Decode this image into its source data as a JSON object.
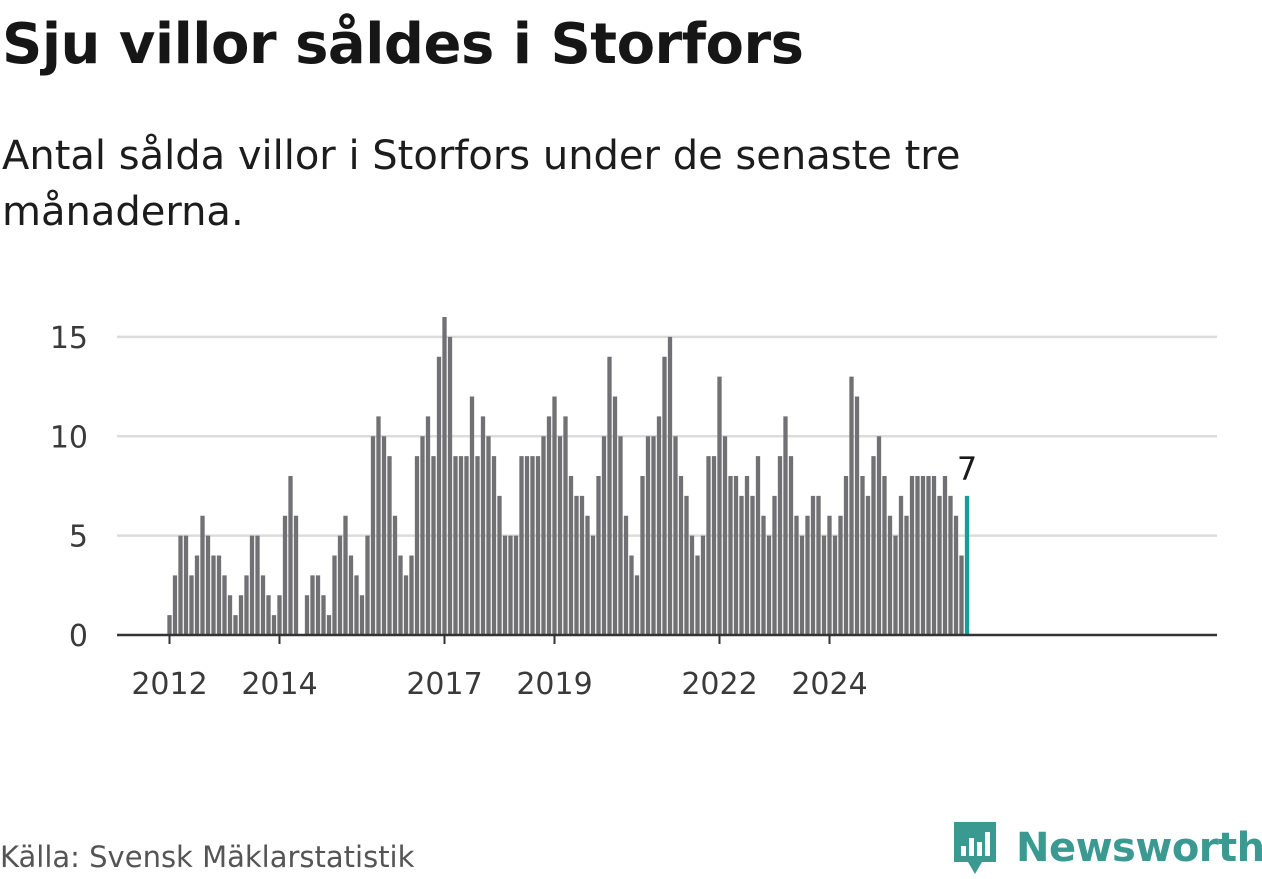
{
  "title": "Sju villor såldes i Storfors",
  "subtitle": "Antal sålda villor i Storfors under de senaste tre månaderna.",
  "source": "Källa: Svensk Mäklarstatistik",
  "brand": "Newsworthy",
  "colors": {
    "bar": "#717174",
    "highlight": "#159f96",
    "grid": "#dcdcdc",
    "axis": "#333333",
    "brand": "#3a9a92"
  },
  "chart_data": {
    "type": "bar",
    "title": "Sju villor såldes i Storfors",
    "subtitle": "Antal sålda villor i Storfors under de senaste tre månaderna.",
    "xlabel": "",
    "ylabel": "",
    "ylim": [
      0,
      16
    ],
    "y_ticks": [
      0,
      5,
      10,
      15
    ],
    "x_ticks": [
      {
        "label": "2012",
        "index": 0
      },
      {
        "label": "2014",
        "index": 20
      },
      {
        "label": "2017",
        "index": 50
      },
      {
        "label": "2019",
        "index": 70
      },
      {
        "label": "2022",
        "index": 100
      },
      {
        "label": "2024",
        "index": 120
      }
    ],
    "last_value_label": "7",
    "values": [
      1,
      3,
      5,
      5,
      3,
      4,
      6,
      5,
      4,
      4,
      3,
      2,
      1,
      2,
      3,
      5,
      5,
      3,
      2,
      1,
      2,
      6,
      8,
      6,
      0,
      2,
      3,
      3,
      2,
      1,
      4,
      5,
      6,
      4,
      3,
      2,
      5,
      10,
      11,
      10,
      9,
      6,
      4,
      3,
      4,
      9,
      10,
      11,
      9,
      14,
      16,
      15,
      9,
      9,
      9,
      12,
      9,
      11,
      10,
      9,
      7,
      5,
      5,
      5,
      9,
      9,
      9,
      9,
      10,
      11,
      12,
      10,
      11,
      8,
      7,
      7,
      6,
      5,
      8,
      10,
      14,
      12,
      10,
      6,
      4,
      3,
      8,
      10,
      10,
      11,
      14,
      15,
      10,
      8,
      7,
      5,
      4,
      5,
      9,
      9,
      13,
      10,
      8,
      8,
      7,
      8,
      7,
      9,
      6,
      5,
      7,
      9,
      11,
      9,
      6,
      5,
      6,
      7,
      7,
      5,
      6,
      5,
      6,
      8,
      13,
      12,
      8,
      7,
      9,
      10,
      8,
      6,
      5,
      7,
      6,
      8,
      8,
      8,
      8,
      8,
      7,
      8,
      7,
      6,
      4,
      7
    ]
  }
}
